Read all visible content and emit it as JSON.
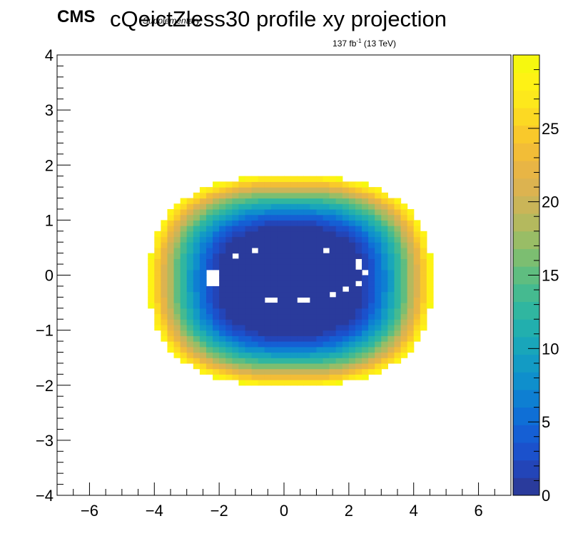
{
  "chart_data": {
    "type": "heatmap",
    "title": "cQeictZless30 profile xy projection",
    "cms_label": "CMS",
    "cms_sublabel": "Supplementary",
    "lumi_label": "137 fb",
    "lumi_exponent": "-1",
    "lumi_energy": " (13 TeV)",
    "xlim": [
      -7,
      7
    ],
    "ylim": [
      -4,
      4
    ],
    "zlim": [
      0,
      30
    ],
    "x_ticks": [
      -6,
      -4,
      -2,
      0,
      2,
      4,
      6
    ],
    "y_ticks": [
      -4,
      -3,
      -2,
      -1,
      0,
      1,
      2,
      3,
      4
    ],
    "z_ticks": [
      0,
      5,
      10,
      15,
      20,
      25
    ],
    "x_tick_labels": [
      "−6",
      "−4",
      "−2",
      "0",
      "2",
      "4",
      "6"
    ],
    "y_tick_labels": [
      "−4",
      "−3",
      "−2",
      "−1",
      "0",
      "1",
      "2",
      "3",
      "4"
    ],
    "z_tick_labels": [
      "0",
      "5",
      "10",
      "15",
      "20",
      "25"
    ],
    "xlabel": "",
    "ylabel": "",
    "grid": false,
    "palette": [
      "#2a3b9c",
      "#2345b8",
      "#1b51cc",
      "#155fd4",
      "#0f6fd6",
      "#0e7fd2",
      "#0f8fcc",
      "#139bc4",
      "#19a6ba",
      "#22afae",
      "#30b6a0",
      "#45ba90",
      "#5fbd80",
      "#7cbe71",
      "#99bd66",
      "#b4b95e",
      "#cab558",
      "#dcb350",
      "#e8b545",
      "#f2bd37",
      "#f9c92b",
      "#fcd923",
      "#fde81c",
      "#fef215",
      "#f6f80f"
    ],
    "surface": {
      "description_of_model": "profile of z over (x,y); z rises from ~0 at centre to ~28 at the boundary",
      "center_x": 0.2,
      "center_y": -0.1,
      "inner_core_radius_x": 1.85,
      "inner_core_radius_y": 0.85,
      "outer_radius_x": 4.35,
      "outer_radius_y": 1.9,
      "bin_width": 0.2,
      "bin_height": 0.1,
      "edge_value": 29
    },
    "empty_bins": [
      {
        "x": -2.2,
        "y": 0.0
      },
      {
        "x": -2.2,
        "y": -0.1
      },
      {
        "x": -1.5,
        "y": 0.35
      },
      {
        "x": -0.95,
        "y": 0.45
      },
      {
        "x": 1.35,
        "y": 0.45
      },
      {
        "x": 2.3,
        "y": 0.2
      },
      {
        "x": 2.45,
        "y": 0.05
      },
      {
        "x": 2.3,
        "y": -0.12
      },
      {
        "x": 1.9,
        "y": -0.27
      },
      {
        "x": 1.45,
        "y": -0.35
      },
      {
        "x": -0.55,
        "y": -0.45
      },
      {
        "x": -0.35,
        "y": -0.45
      },
      {
        "x": 0.45,
        "y": -0.45
      },
      {
        "x": 0.65,
        "y": -0.45
      }
    ]
  }
}
